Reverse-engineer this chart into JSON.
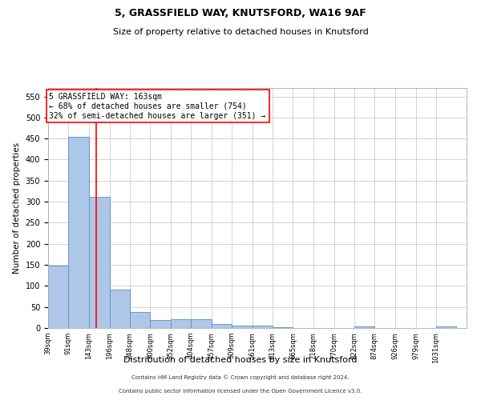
{
  "title1": "5, GRASSFIELD WAY, KNUTSFORD, WA16 9AF",
  "title2": "Size of property relative to detached houses in Knutsford",
  "xlabel": "Distribution of detached houses by size in Knutsford",
  "ylabel": "Number of detached properties",
  "footer1": "Contains HM Land Registry data © Crown copyright and database right 2024.",
  "footer2": "Contains public sector information licensed under the Open Government Licence v3.0.",
  "annotation_line1": "5 GRASSFIELD WAY: 163sqm",
  "annotation_line2": "← 68% of detached houses are smaller (754)",
  "annotation_line3": "32% of semi-detached houses are larger (351) →",
  "bar_edges": [
    39,
    91,
    143,
    196,
    248,
    300,
    352,
    404,
    457,
    509,
    561,
    613,
    665,
    718,
    770,
    822,
    874,
    926,
    979,
    1031,
    1083
  ],
  "bar_heights": [
    148,
    455,
    311,
    91,
    38,
    19,
    20,
    21,
    9,
    6,
    6,
    1,
    0,
    0,
    0,
    4,
    0,
    0,
    0,
    4,
    0
  ],
  "bar_color": "#aec6e8",
  "bar_edge_color": "#5a8fc0",
  "red_line_x": 163,
  "ylim": [
    0,
    570
  ],
  "yticks": [
    0,
    50,
    100,
    150,
    200,
    250,
    300,
    350,
    400,
    450,
    500,
    550
  ],
  "bg_color": "#ffffff",
  "grid_color": "#cccccc",
  "title_fontsize": 9,
  "subtitle_fontsize": 8,
  "xlabel_fontsize": 8,
  "ylabel_fontsize": 7.5,
  "tick_fontsize": 7,
  "xtick_fontsize": 6,
  "footer_fontsize": 5,
  "annotation_fontsize": 7
}
